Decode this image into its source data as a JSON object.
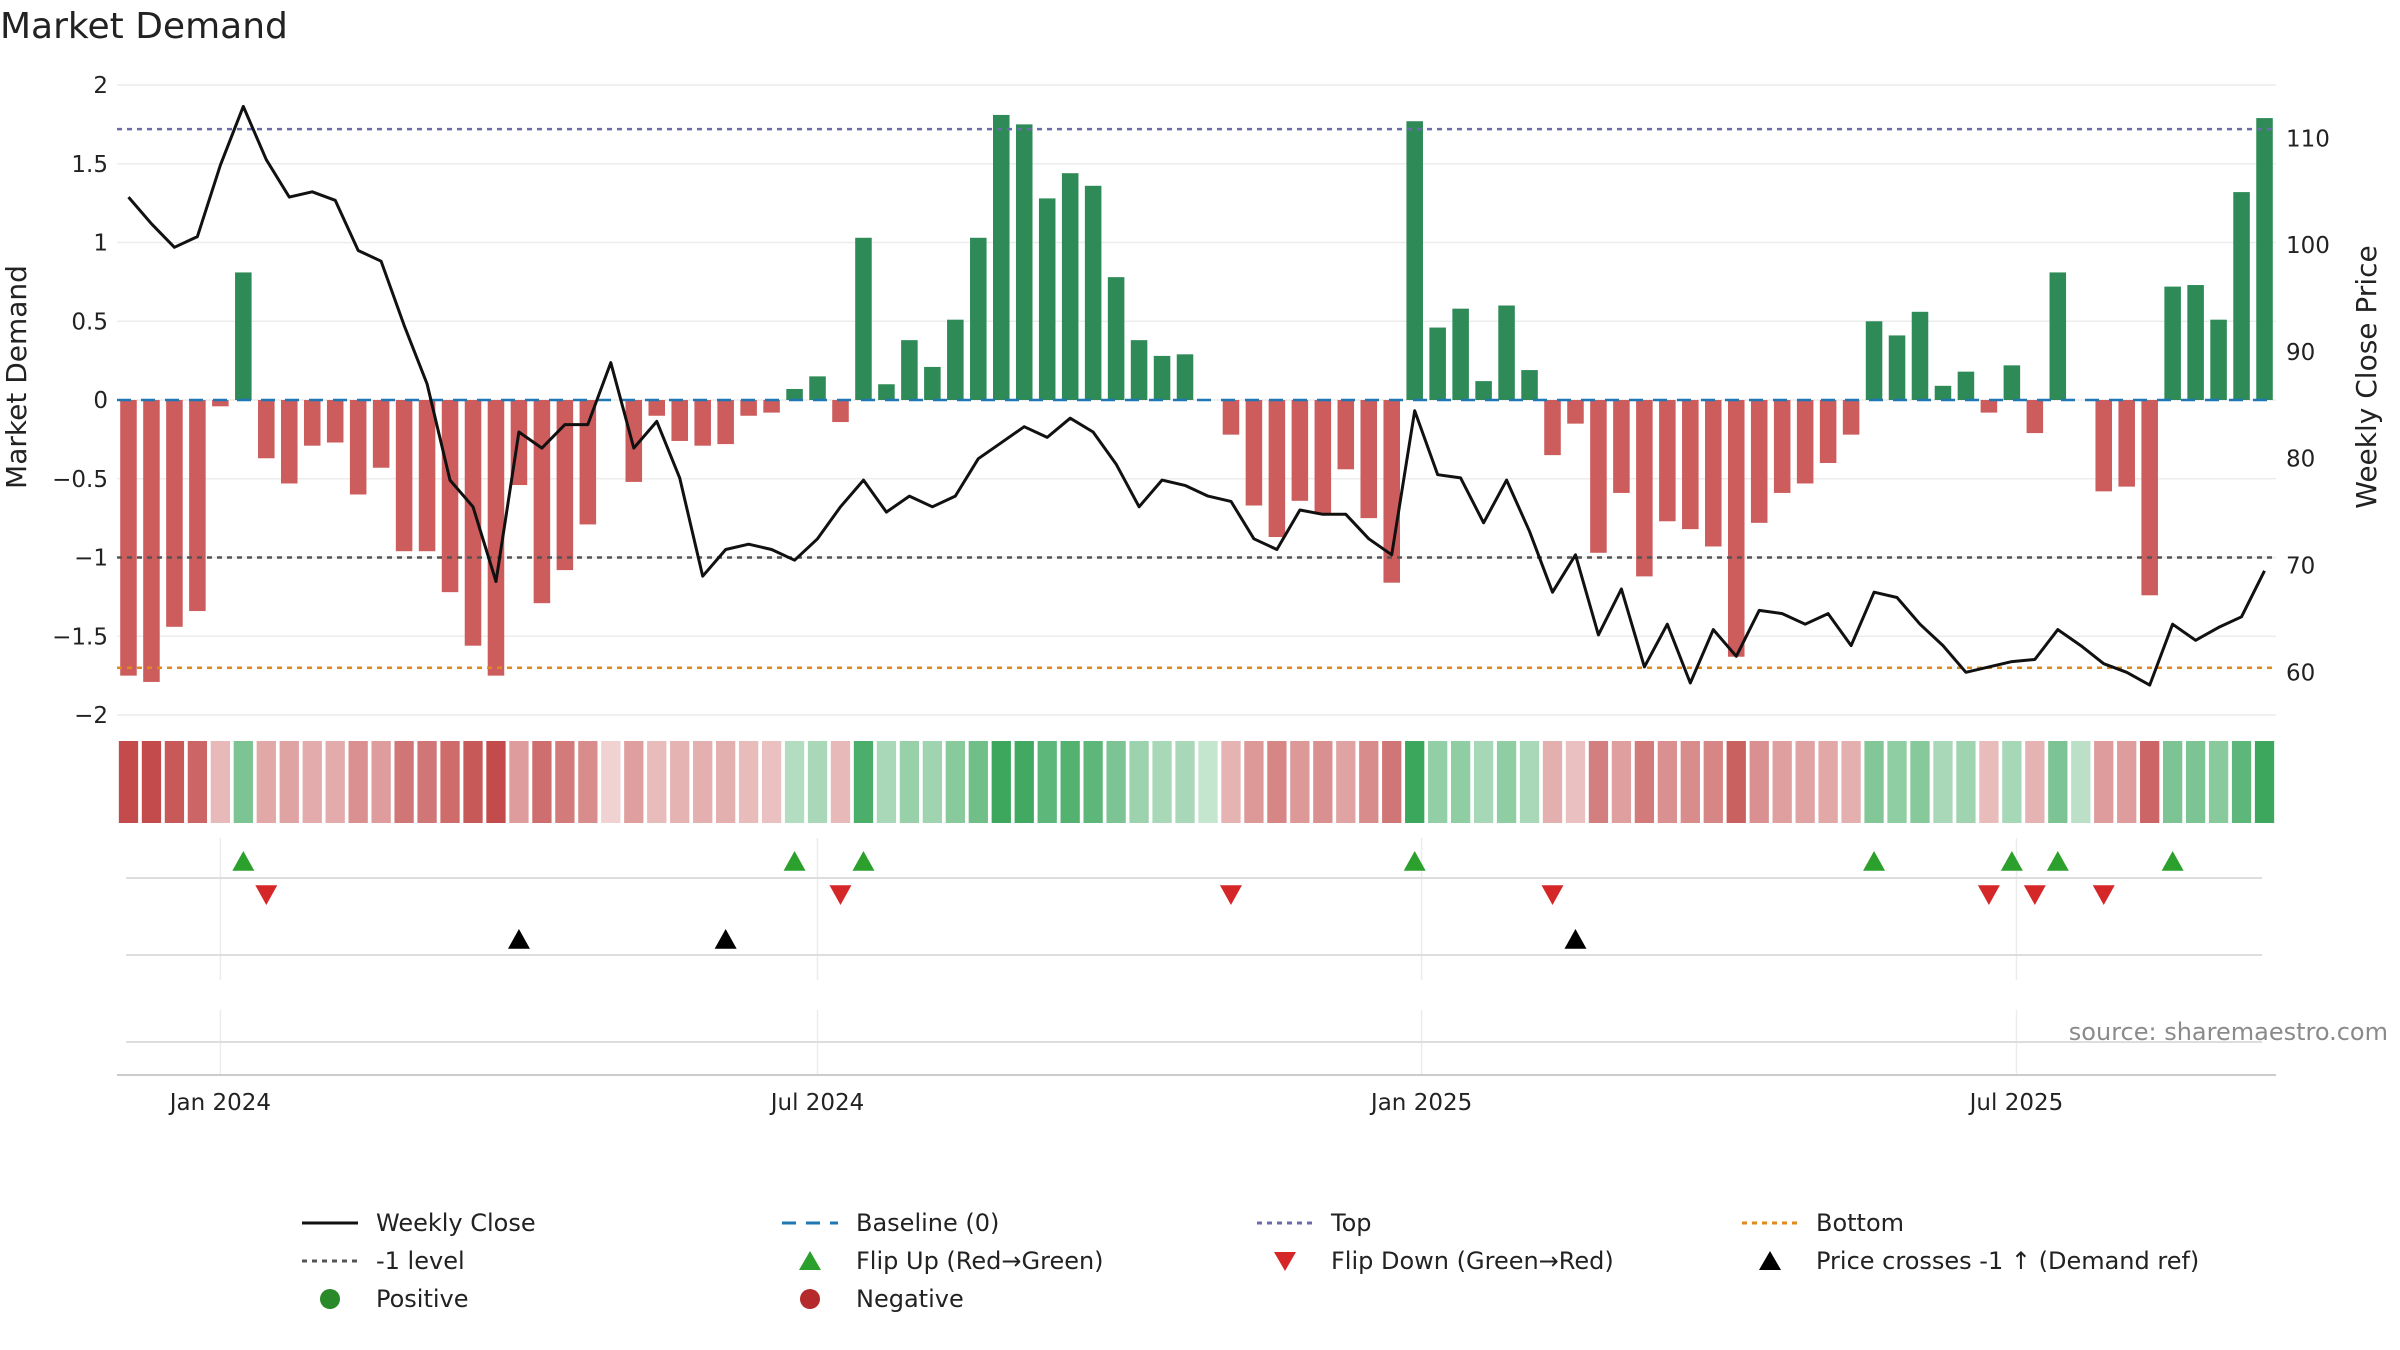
{
  "chart_data": {
    "type": "bar",
    "title": "Market Demand",
    "ylabel": "Market Demand",
    "y2label": "Weekly Close Price",
    "ylim": [
      -2,
      2
    ],
    "y2lim": [
      56,
      115
    ],
    "yticks": [
      2,
      1.5,
      1,
      0.5,
      0,
      -0.5,
      -1,
      -1.5,
      -2
    ],
    "ytick_labels": [
      "2",
      "1.5",
      "1",
      "0.5",
      "0",
      "−0.5",
      "−1",
      "−1.5",
      "−2"
    ],
    "y2ticks": [
      60,
      70,
      80,
      90,
      100,
      110
    ],
    "x_labels": [
      {
        "label": "Jan 2024",
        "week": 4
      },
      {
        "label": "Jul 2024",
        "week": 30
      },
      {
        "label": "Jan 2025",
        "week": 56.3
      },
      {
        "label": "Jul 2025",
        "week": 82.2
      }
    ],
    "levels": {
      "top": 1.72,
      "bottom": -1.7,
      "minus_one": -1,
      "baseline": 0
    },
    "colors": {
      "positive": "#2e8b57",
      "negative": "#cd5c5c",
      "price": "#111111",
      "baseline": "#1f77b4",
      "top": "#6b6bab",
      "bottom": "#e08a1e",
      "level": "#555555",
      "flip_up": "#2ca02c",
      "flip_down": "#d62728",
      "cross": "#000000"
    },
    "demand": [
      -1.75,
      -1.79,
      -1.44,
      -1.34,
      -0.04,
      0.81,
      -0.37,
      -0.53,
      -0.29,
      -0.27,
      -0.6,
      -0.43,
      -0.96,
      -0.96,
      -1.22,
      -1.56,
      -1.75,
      -0.54,
      -1.29,
      -1.08,
      -0.79,
      0.0,
      -0.52,
      -0.1,
      -0.26,
      -0.29,
      -0.28,
      -0.1,
      -0.08,
      0.07,
      0.15,
      -0.14,
      1.03,
      0.1,
      0.38,
      0.21,
      0.51,
      1.03,
      1.81,
      1.75,
      1.28,
      1.44,
      1.36,
      0.78,
      0.38,
      0.28,
      0.29,
      0.0,
      -0.22,
      -0.67,
      -0.87,
      -0.64,
      -0.72,
      -0.44,
      -0.75,
      -1.16,
      1.77,
      0.46,
      0.58,
      0.12,
      0.6,
      0.19,
      -0.35,
      -0.15,
      -0.97,
      -0.59,
      -1.12,
      -0.77,
      -0.82,
      -0.93,
      -1.63,
      -0.78,
      -0.59,
      -0.53,
      -0.4,
      -0.22,
      0.5,
      0.41,
      0.56,
      0.09,
      0.18,
      -0.08,
      0.22,
      -0.21,
      0.81,
      0.0,
      -0.58,
      -0.55,
      -1.24,
      0.72,
      0.73,
      0.51,
      1.32,
      1.79
    ],
    "price": [
      104.5,
      102,
      99.8,
      100.8,
      107.5,
      113,
      108,
      104.5,
      105,
      104.2,
      99.5,
      98.5,
      92.5,
      87,
      78,
      75.5,
      68.5,
      82.5,
      81,
      83.2,
      83.2,
      89,
      81,
      83.5,
      78.2,
      69,
      71.5,
      72,
      71.5,
      70.5,
      72.5,
      75.5,
      78,
      75,
      76.5,
      75.5,
      76.5,
      80,
      81.5,
      83,
      82,
      83.8,
      82.5,
      79.5,
      75.5,
      78,
      77.5,
      76.5,
      76,
      72.5,
      71.5,
      75.2,
      74.8,
      74.8,
      72.5,
      71,
      84.5,
      78.5,
      78.2,
      74,
      78,
      73.2,
      67.5,
      71,
      63.5,
      67.8,
      60.5,
      64.5,
      59,
      64,
      61.5,
      65.8,
      65.5,
      64.5,
      65.5,
      62.5,
      67.5,
      67,
      64.5,
      62.5,
      60,
      60.5,
      61,
      61.2,
      64,
      62.5,
      60.8,
      60,
      58.8,
      64.5,
      63,
      64.2,
      65.2,
      69.5
    ],
    "heat": [
      -0.9,
      -0.9,
      -0.82,
      -0.75,
      -0.25,
      0.55,
      -0.35,
      -0.38,
      -0.33,
      -0.33,
      -0.5,
      -0.42,
      -0.65,
      -0.65,
      -0.72,
      -0.82,
      -0.9,
      -0.42,
      -0.7,
      -0.62,
      -0.52,
      -0.1,
      -0.4,
      -0.22,
      -0.28,
      -0.3,
      -0.3,
      -0.22,
      -0.2,
      0.25,
      0.3,
      -0.25,
      0.82,
      0.3,
      0.4,
      0.35,
      0.48,
      0.62,
      0.9,
      0.88,
      0.72,
      0.78,
      0.72,
      0.55,
      0.38,
      0.3,
      0.3,
      0.15,
      -0.28,
      -0.45,
      -0.55,
      -0.45,
      -0.5,
      -0.38,
      -0.52,
      -0.65,
      0.92,
      0.42,
      0.45,
      0.32,
      0.45,
      0.3,
      -0.3,
      -0.2,
      -0.6,
      -0.4,
      -0.62,
      -0.5,
      -0.52,
      -0.55,
      -0.78,
      -0.5,
      -0.4,
      -0.38,
      -0.35,
      -0.3,
      0.52,
      0.45,
      0.5,
      0.3,
      0.35,
      -0.22,
      0.32,
      -0.28,
      0.55,
      0.2,
      -0.42,
      -0.42,
      -0.75,
      0.55,
      0.55,
      0.48,
      0.72,
      0.9
    ],
    "flip_up": [
      5,
      29,
      32,
      56,
      76,
      82,
      84,
      89
    ],
    "flip_down": [
      6,
      31,
      48,
      62,
      81,
      83,
      86
    ],
    "price_cross": [
      17,
      26,
      63
    ],
    "source": "source: sharemaestro.com",
    "legend": [
      {
        "label": "Weekly Close",
        "marker": "line"
      },
      {
        "label": "Baseline (0)",
        "marker": "dash"
      },
      {
        "label": "Top",
        "marker": "dot-top"
      },
      {
        "label": "Bottom",
        "marker": "dot-bottom"
      },
      {
        "label": "-1 level",
        "marker": "dot-level"
      },
      {
        "label": "Flip Up (Red→Green)",
        "marker": "tri-up-green"
      },
      {
        "label": "Flip Down (Green→Red)",
        "marker": "tri-down-red"
      },
      {
        "label": "Price crosses -1 ↑ (Demand ref)",
        "marker": "tri-up-black"
      },
      {
        "label": "Positive",
        "marker": "dot-green"
      },
      {
        "label": "Negative",
        "marker": "dot-red"
      }
    ]
  }
}
